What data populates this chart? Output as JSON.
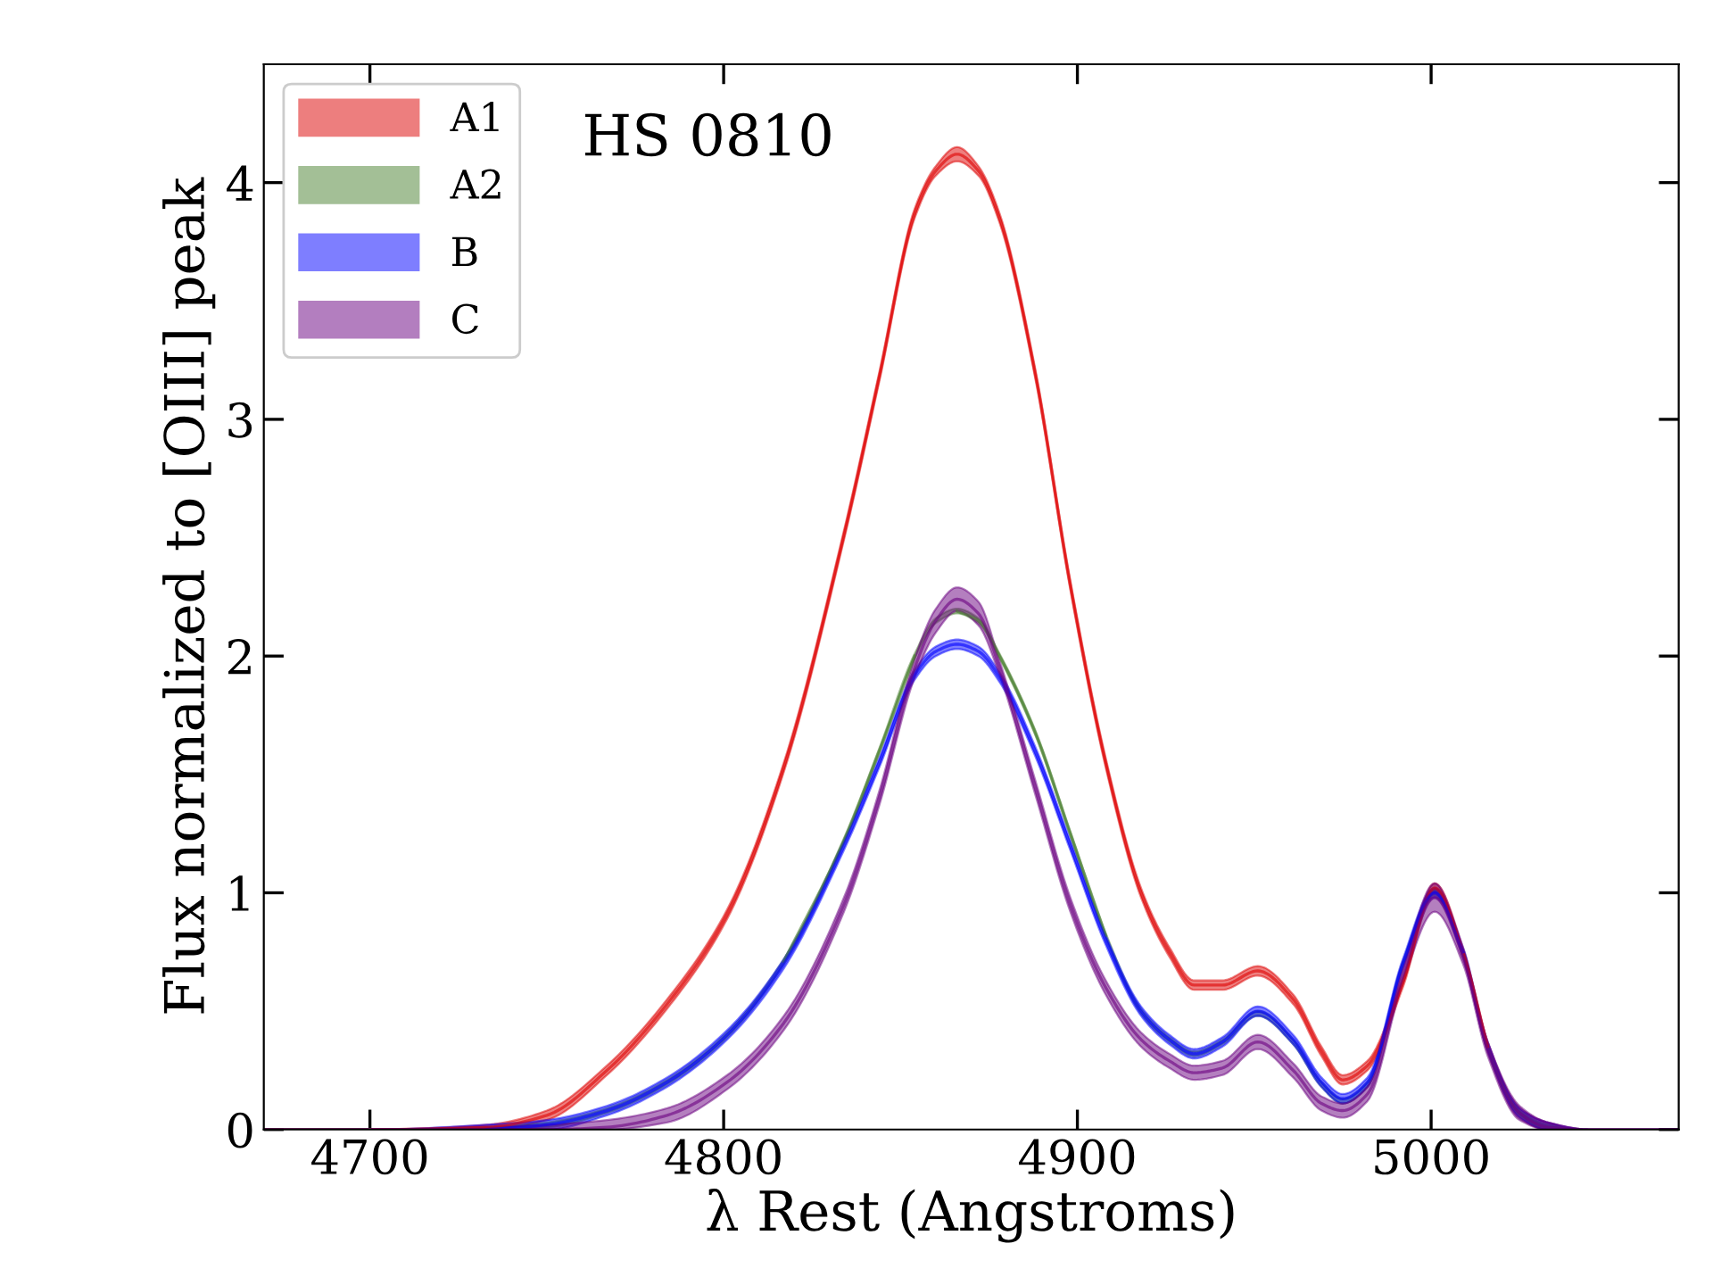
{
  "chart_data": {
    "type": "line",
    "xlabel": "λ Rest (Angstroms)",
    "ylabel": "Flux normalized to [OIII] peak",
    "annotations": [
      "HS 0810"
    ],
    "x": [
      4670,
      4700,
      4733,
      4750,
      4767,
      4784,
      4801,
      4817,
      4834,
      4844,
      4854,
      4860,
      4866,
      4872,
      4878,
      4888,
      4898,
      4908,
      4918,
      4926,
      4933,
      4941,
      4951,
      4961,
      4969,
      4975,
      4982,
      4992,
      5001,
      5009,
      5016,
      5025,
      5033,
      5045,
      5070
    ],
    "series": [
      {
        "name": "A1",
        "color": "#dd0000",
        "values": [
          0,
          0,
          0.01,
          0.06,
          0.25,
          0.53,
          0.91,
          1.53,
          2.51,
          3.18,
          3.87,
          4.05,
          4.12,
          4.05,
          3.85,
          3.2,
          2.3,
          1.55,
          1.0,
          0.75,
          0.61,
          0.61,
          0.67,
          0.55,
          0.33,
          0.21,
          0.27,
          0.62,
          1.02,
          0.75,
          0.35,
          null,
          null,
          null,
          null
        ],
        "lower": [
          0,
          0,
          0,
          0.04,
          0.23,
          0.51,
          0.89,
          1.51,
          2.49,
          3.16,
          3.85,
          4.03,
          4.09,
          4.03,
          3.83,
          3.18,
          2.28,
          1.53,
          0.98,
          0.73,
          0.59,
          0.59,
          0.65,
          0.53,
          0.31,
          0.19,
          0.25,
          0.6,
          1.0,
          0.73,
          0.33,
          0.05,
          0,
          0,
          0
        ],
        "upper": [
          0,
          0,
          0.02,
          0.08,
          0.27,
          0.55,
          0.93,
          1.55,
          2.53,
          3.2,
          3.89,
          4.07,
          4.15,
          4.07,
          3.87,
          3.22,
          2.32,
          1.57,
          1.02,
          0.77,
          0.63,
          0.63,
          0.69,
          0.57,
          0.35,
          0.23,
          0.29,
          0.64,
          1.04,
          0.77,
          0.37,
          0.09,
          0.03,
          0,
          0
        ]
      },
      {
        "name": "A2",
        "color": "#4a8030",
        "values": [
          0,
          0,
          null,
          null,
          null,
          null,
          null,
          0.71,
          1.22,
          1.6,
          2.0,
          null,
          2.19,
          2.15,
          2.0,
          1.68,
          1.25,
          0.82,
          null,
          null,
          null,
          null,
          null,
          null,
          null,
          null,
          null,
          null,
          null,
          null,
          null,
          null,
          null,
          null,
          null
        ],
        "lower": [
          0,
          0,
          0,
          0.01,
          0.07,
          0.19,
          0.39,
          0.7,
          1.21,
          1.59,
          1.99,
          2.14,
          2.18,
          2.14,
          1.99,
          1.67,
          1.24,
          0.81,
          0.49,
          0.37,
          0.31,
          0.36,
          0.48,
          0.36,
          0.18,
          0.11,
          0.18,
          0.69,
          0.99,
          0.74,
          0.34,
          0.06,
          0,
          0,
          0
        ],
        "upper": [
          0,
          0,
          0.01,
          0.03,
          0.09,
          0.21,
          0.41,
          0.72,
          1.23,
          1.61,
          2.01,
          2.16,
          2.2,
          2.16,
          2.01,
          1.69,
          1.26,
          0.83,
          0.51,
          0.39,
          0.33,
          0.38,
          0.5,
          0.38,
          0.2,
          0.13,
          0.2,
          0.71,
          1.01,
          0.76,
          0.36,
          0.08,
          0.02,
          0,
          0
        ]
      },
      {
        "name": "B",
        "color": "#0000ff",
        "values": [
          null,
          null,
          0,
          0.02,
          0.08,
          0.2,
          0.4,
          0.7,
          1.2,
          1.55,
          1.92,
          2.02,
          2.05,
          2.02,
          1.91,
          1.6,
          1.2,
          0.8,
          0.5,
          0.38,
          0.32,
          0.37,
          0.5,
          0.38,
          0.2,
          0.13,
          0.2,
          0.7,
          1.0,
          0.75,
          null,
          null,
          null,
          null,
          null
        ],
        "lower": [
          0,
          0,
          0,
          0,
          0.06,
          0.18,
          0.38,
          0.68,
          1.18,
          1.53,
          1.9,
          2.0,
          2.03,
          2.0,
          1.89,
          1.58,
          1.18,
          0.78,
          0.48,
          0.36,
          0.3,
          0.35,
          0.48,
          0.36,
          0.18,
          0.11,
          0.18,
          0.68,
          0.98,
          0.73,
          0.33,
          0.05,
          0,
          0,
          0
        ],
        "upper": [
          0,
          0,
          0.02,
          0.04,
          0.1,
          0.22,
          0.42,
          0.72,
          1.22,
          1.57,
          1.94,
          2.04,
          2.07,
          2.04,
          1.93,
          1.62,
          1.22,
          0.82,
          0.52,
          0.4,
          0.34,
          0.39,
          0.52,
          0.4,
          0.22,
          0.15,
          0.22,
          0.72,
          1.02,
          0.77,
          0.37,
          0.09,
          0.03,
          0,
          0
        ]
      },
      {
        "name": "C",
        "color": "#6a0080",
        "values": [
          0,
          0,
          0,
          0,
          0.01,
          0.06,
          0.2,
          0.45,
          0.95,
          1.4,
          1.95,
          2.15,
          2.24,
          2.18,
          1.95,
          1.45,
          0.95,
          0.6,
          0.38,
          0.29,
          0.24,
          0.26,
          0.37,
          0.25,
          0.11,
          0.08,
          0.15,
          0.65,
          0.98,
          0.73,
          0.34,
          0.07,
          0.01,
          0,
          0
        ],
        "lower": [
          0,
          0,
          0,
          0,
          0,
          0.03,
          0.17,
          0.42,
          0.92,
          1.37,
          1.91,
          2.1,
          2.19,
          2.13,
          1.92,
          1.42,
          0.92,
          0.57,
          0.35,
          0.26,
          0.21,
          0.23,
          0.34,
          0.22,
          0.08,
          0.05,
          0.12,
          0.62,
          0.92,
          0.7,
          0.31,
          0.04,
          0,
          0,
          0
        ],
        "upper": [
          0,
          0,
          0.01,
          0.02,
          0.04,
          0.09,
          0.23,
          0.48,
          0.98,
          1.43,
          1.99,
          2.2,
          2.29,
          2.23,
          1.98,
          1.48,
          0.98,
          0.63,
          0.41,
          0.32,
          0.27,
          0.29,
          0.4,
          0.28,
          0.14,
          0.11,
          0.18,
          0.68,
          1.04,
          0.76,
          0.37,
          0.1,
          0.03,
          0,
          0
        ]
      }
    ],
    "xlim": [
      4670,
      5070
    ],
    "ylim": [
      0,
      4.5
    ],
    "xticks": [
      4700,
      4800,
      4900,
      5000
    ],
    "yticks": [
      0,
      1,
      2,
      3,
      4
    ],
    "legend": "top left",
    "marker": "none",
    "line_style": "solid",
    "grid": false
  }
}
